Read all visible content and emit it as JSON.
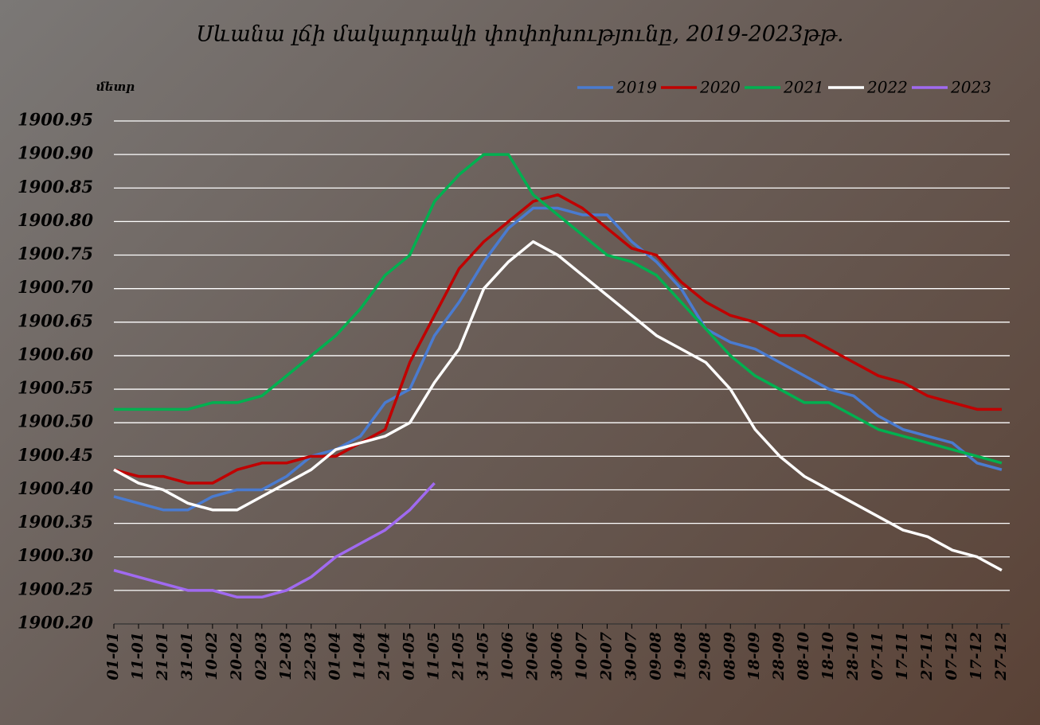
{
  "chart_data": {
    "type": "line",
    "title": "Սևանա լճի մակարդակի փոփոխությունը, 2019-2023թթ.",
    "y_label": "մետր",
    "categories": [
      "01-01",
      "11-01",
      "21-01",
      "31-01",
      "10-02",
      "20-02",
      "02-03",
      "12-03",
      "22-03",
      "01-04",
      "11-04",
      "21-04",
      "01-05",
      "11-05",
      "21-05",
      "31-05",
      "10-06",
      "20-06",
      "30-06",
      "10-07",
      "20-07",
      "30-07",
      "09-08",
      "19-08",
      "29-08",
      "08-09",
      "18-09",
      "28-09",
      "08-10",
      "18-10",
      "28-10",
      "07-11",
      "17-11",
      "27-11",
      "07-12",
      "17-12",
      "27-12"
    ],
    "series": [
      {
        "name": "2019",
        "color": "#4a7bd0",
        "values": [
          1900.39,
          1900.38,
          1900.37,
          1900.37,
          1900.39,
          1900.4,
          1900.4,
          1900.42,
          1900.45,
          1900.46,
          1900.48,
          1900.53,
          1900.55,
          1900.63,
          1900.68,
          1900.74,
          1900.79,
          1900.82,
          1900.82,
          1900.81,
          1900.81,
          1900.77,
          1900.74,
          1900.7,
          1900.64,
          1900.62,
          1900.61,
          1900.59,
          1900.57,
          1900.55,
          1900.54,
          1900.51,
          1900.49,
          1900.48,
          1900.47,
          1900.44,
          1900.43
        ]
      },
      {
        "name": "2020",
        "color": "#c00000",
        "values": [
          1900.43,
          1900.42,
          1900.42,
          1900.41,
          1900.41,
          1900.43,
          1900.44,
          1900.44,
          1900.45,
          1900.45,
          1900.47,
          1900.49,
          1900.59,
          1900.66,
          1900.73,
          1900.77,
          1900.8,
          1900.83,
          1900.84,
          1900.82,
          1900.79,
          1900.76,
          1900.75,
          1900.71,
          1900.68,
          1900.66,
          1900.65,
          1900.63,
          1900.63,
          1900.61,
          1900.59,
          1900.57,
          1900.56,
          1900.54,
          1900.53,
          1900.52,
          1900.52
        ]
      },
      {
        "name": "2021",
        "color": "#00b050",
        "values": [
          1900.52,
          1900.52,
          1900.52,
          1900.52,
          1900.53,
          1900.53,
          1900.54,
          1900.57,
          1900.6,
          1900.63,
          1900.67,
          1900.72,
          1900.75,
          1900.83,
          1900.87,
          1900.9,
          1900.9,
          1900.84,
          1900.81,
          1900.78,
          1900.75,
          1900.74,
          1900.72,
          1900.68,
          1900.64,
          1900.6,
          1900.57,
          1900.55,
          1900.53,
          1900.53,
          1900.51,
          1900.49,
          1900.48,
          1900.47,
          1900.46,
          1900.45,
          1900.44
        ]
      },
      {
        "name": "2022",
        "color": "#ffffff",
        "values": [
          1900.43,
          1900.41,
          1900.4,
          1900.38,
          1900.37,
          1900.37,
          1900.39,
          1900.41,
          1900.43,
          1900.46,
          1900.47,
          1900.48,
          1900.5,
          1900.56,
          1900.61,
          1900.7,
          1900.74,
          1900.77,
          1900.75,
          1900.72,
          1900.69,
          1900.66,
          1900.63,
          1900.61,
          1900.59,
          1900.55,
          1900.49,
          1900.45,
          1900.42,
          1900.4,
          1900.38,
          1900.36,
          1900.34,
          1900.33,
          1900.31,
          1900.3,
          1900.28
        ]
      },
      {
        "name": "2023",
        "color": "#a06af0",
        "values": [
          1900.28,
          1900.27,
          1900.26,
          1900.25,
          1900.25,
          1900.24,
          1900.24,
          1900.25,
          1900.27,
          1900.3,
          1900.32,
          1900.34,
          1900.37,
          1900.41,
          null,
          null,
          null,
          null,
          null,
          null,
          null,
          null,
          null,
          null,
          null,
          null,
          null,
          null,
          null,
          null,
          null,
          null,
          null,
          null,
          null,
          null,
          null
        ]
      }
    ],
    "ylim": [
      1900.2,
      1900.95
    ],
    "yticks": [
      {
        "value": 1900.2,
        "label": "1900.20"
      },
      1900.25,
      {
        "value": 1900.3,
        "label": "1900.30"
      },
      1900.35,
      {
        "value": 1900.4,
        "label": "1900.40"
      },
      1900.45,
      {
        "value": 1900.5,
        "label": "1900.50"
      },
      1900.55,
      {
        "value": 1900.6,
        "label": "1900.60"
      },
      1900.65,
      {
        "value": 1900.7,
        "label": "1900.70"
      },
      1900.75,
      {
        "value": 1900.8,
        "label": "1900.80"
      },
      1900.85,
      {
        "value": 1900.9,
        "label": "1900.90"
      },
      1900.95
    ],
    "grid": true,
    "legend": "top-right"
  }
}
